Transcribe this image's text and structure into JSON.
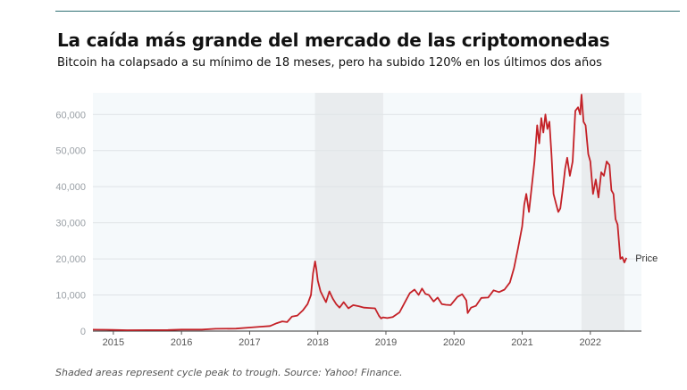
{
  "header": {
    "title": "La caída más grande del mercado de las criptomonedas",
    "subtitle": "Bitcoin ha colapsado a su mínimo de 18 meses, pero ha subido 120% en los últimos dos años"
  },
  "footer": {
    "source": "Shaded areas represent cycle peak to trough. Source: Yahoo! Finance."
  },
  "colors": {
    "line": "#c42127",
    "shade": "#e9ecee",
    "plot_bg": "#f5f9fb",
    "grid": "#dfe3e6",
    "axis_text": "#9aa0a6"
  },
  "chart_data": {
    "type": "line",
    "title": "La caída más grande del mercado de las criptomonedas",
    "xlabel": "",
    "ylabel": "",
    "xlim": [
      2014.7,
      2022.75
    ],
    "ylim": [
      0,
      66000
    ],
    "grid": true,
    "y_ticks": [
      0,
      10000,
      20000,
      30000,
      40000,
      50000,
      60000
    ],
    "y_tick_labels": [
      "0",
      "10,000",
      "20,000",
      "30,000",
      "40,000",
      "50,000",
      "60,000"
    ],
    "x_ticks": [
      2015,
      2016,
      2017,
      2018,
      2019,
      2020,
      2021,
      2022
    ],
    "x_tick_labels": [
      "2015",
      "2016",
      "2017",
      "2018",
      "2019",
      "2020",
      "2021",
      "2022"
    ],
    "shaded_periods": [
      [
        2017.96,
        2018.96
      ],
      [
        2021.87,
        2022.5
      ]
    ],
    "series": [
      {
        "name": "Price",
        "x": [
          2014.7,
          2014.9,
          2015.0,
          2015.2,
          2015.5,
          2015.8,
          2016.0,
          2016.3,
          2016.5,
          2016.8,
          2017.0,
          2017.15,
          2017.3,
          2017.4,
          2017.48,
          2017.55,
          2017.62,
          2017.7,
          2017.78,
          2017.85,
          2017.9,
          2017.93,
          2017.96,
          2017.98,
          2018.0,
          2018.04,
          2018.08,
          2018.12,
          2018.17,
          2018.22,
          2018.27,
          2018.32,
          2018.38,
          2018.45,
          2018.52,
          2018.6,
          2018.68,
          2018.76,
          2018.84,
          2018.9,
          2018.93,
          2018.96,
          2019.02,
          2019.1,
          2019.2,
          2019.28,
          2019.35,
          2019.42,
          2019.48,
          2019.53,
          2019.58,
          2019.63,
          2019.7,
          2019.76,
          2019.82,
          2019.88,
          2019.95,
          2020.05,
          2020.12,
          2020.18,
          2020.2,
          2020.25,
          2020.32,
          2020.4,
          2020.5,
          2020.58,
          2020.66,
          2020.74,
          2020.82,
          2020.88,
          2020.94,
          2021.0,
          2021.03,
          2021.06,
          2021.1,
          2021.14,
          2021.18,
          2021.22,
          2021.25,
          2021.28,
          2021.31,
          2021.34,
          2021.37,
          2021.4,
          2021.43,
          2021.46,
          2021.5,
          2021.53,
          2021.56,
          2021.6,
          2021.63,
          2021.66,
          2021.7,
          2021.74,
          2021.78,
          2021.82,
          2021.85,
          2021.87,
          2021.9,
          2021.93,
          2021.97,
          2022.0,
          2022.04,
          2022.08,
          2022.12,
          2022.16,
          2022.2,
          2022.24,
          2022.28,
          2022.31,
          2022.34,
          2022.37,
          2022.4,
          2022.44,
          2022.47,
          2022.5,
          2022.53
        ],
        "values": [
          400,
          380,
          320,
          250,
          270,
          300,
          430,
          420,
          650,
          700,
          1000,
          1200,
          1400,
          2200,
          2700,
          2500,
          4000,
          4300,
          5700,
          7500,
          10000,
          16000,
          19300,
          17000,
          14000,
          11000,
          9500,
          8000,
          11000,
          9000,
          7500,
          6500,
          8000,
          6300,
          7200,
          6900,
          6500,
          6400,
          6300,
          4200,
          3500,
          3800,
          3600,
          3900,
          5200,
          8000,
          10500,
          11500,
          10000,
          11800,
          10300,
          10000,
          8200,
          9300,
          7500,
          7300,
          7200,
          9500,
          10200,
          8500,
          5000,
          6500,
          7000,
          9200,
          9300,
          11300,
          10800,
          11500,
          13500,
          17500,
          23000,
          29000,
          35000,
          38000,
          33000,
          40000,
          47000,
          57000,
          52000,
          59000,
          55000,
          60000,
          56000,
          58000,
          49000,
          38000,
          35000,
          33000,
          34000,
          40000,
          45000,
          48000,
          43000,
          47000,
          61000,
          62000,
          60000,
          65500,
          58000,
          57000,
          49000,
          47000,
          38000,
          42000,
          37000,
          44000,
          43000,
          47000,
          46000,
          39000,
          38000,
          31000,
          29500,
          20000,
          20500,
          19000,
          20300
        ]
      }
    ],
    "legend": "inline-end-label",
    "end_label": "Price"
  }
}
